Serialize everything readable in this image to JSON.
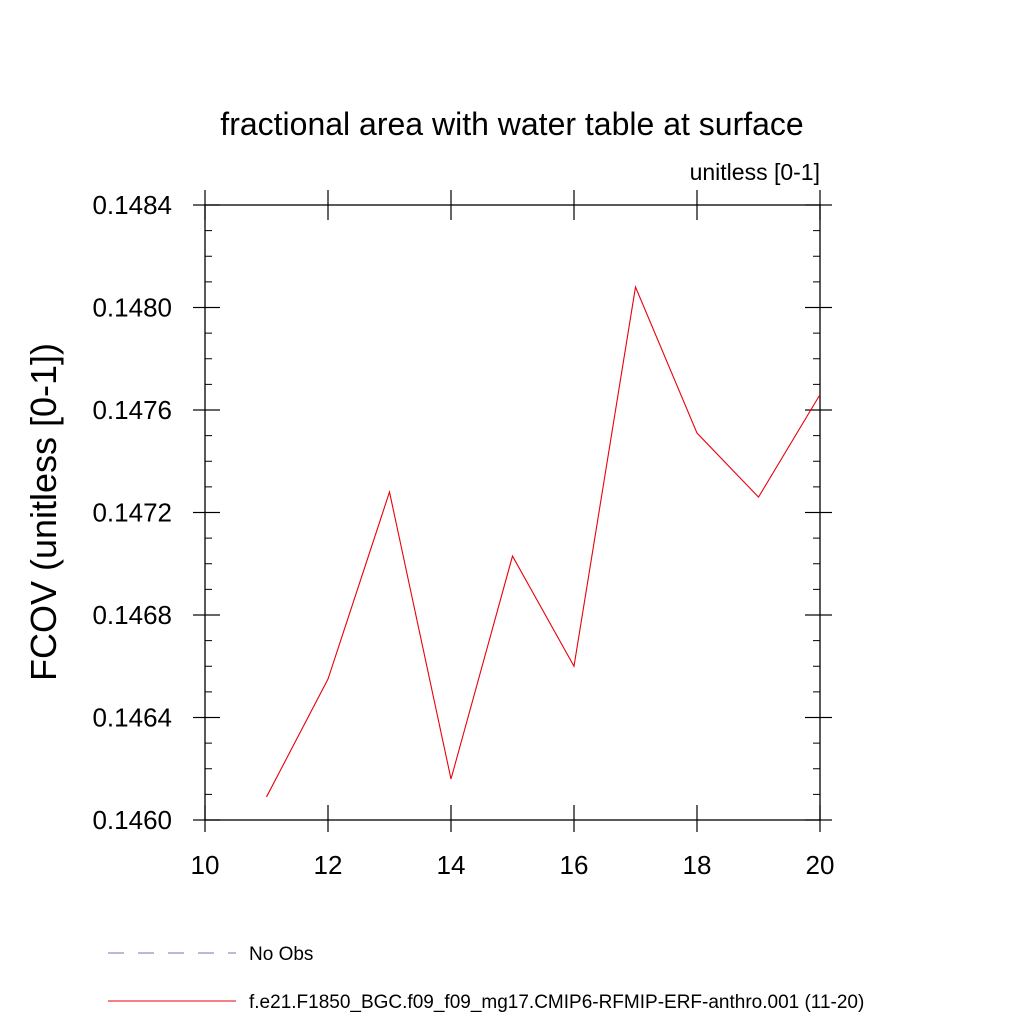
{
  "chart_data": {
    "type": "line",
    "title": "fractional area with water table at surface",
    "units_label": "unitless [0-1]",
    "xlabel": "",
    "ylabel": "FCOV  (unitless [0-1])",
    "xlim": [
      10,
      20
    ],
    "ylim": [
      0.146,
      0.1484
    ],
    "x_ticks": [
      10,
      12,
      14,
      16,
      18,
      20
    ],
    "y_ticks": [
      "0.1460",
      "0.1464",
      "0.1468",
      "0.1472",
      "0.1476",
      "0.1480",
      "0.1484"
    ],
    "grid": false,
    "series": [
      {
        "name": "f.e21.F1850_BGC.f09_f09_mg17.CMIP6-RFMIP-ERF-anthro.001 (11-20)",
        "color": "#e8000b",
        "style": "solid",
        "x": [
          11,
          12,
          13,
          14,
          15,
          16,
          17,
          18,
          19,
          20
        ],
        "y": [
          0.14609,
          0.14655,
          0.14728,
          0.14616,
          0.14703,
          0.1466,
          0.14808,
          0.14751,
          0.14726,
          0.14766
        ]
      }
    ],
    "legend": {
      "placement": "bottom",
      "entries": [
        {
          "label": "No Obs",
          "color": "#7b6fb0",
          "style": "dashed"
        },
        {
          "label": "f.e21.F1850_BGC.f09_f09_mg17.CMIP6-RFMIP-ERF-anthro.001 (11-20)",
          "color": "#e8000b",
          "style": "solid"
        }
      ]
    }
  }
}
